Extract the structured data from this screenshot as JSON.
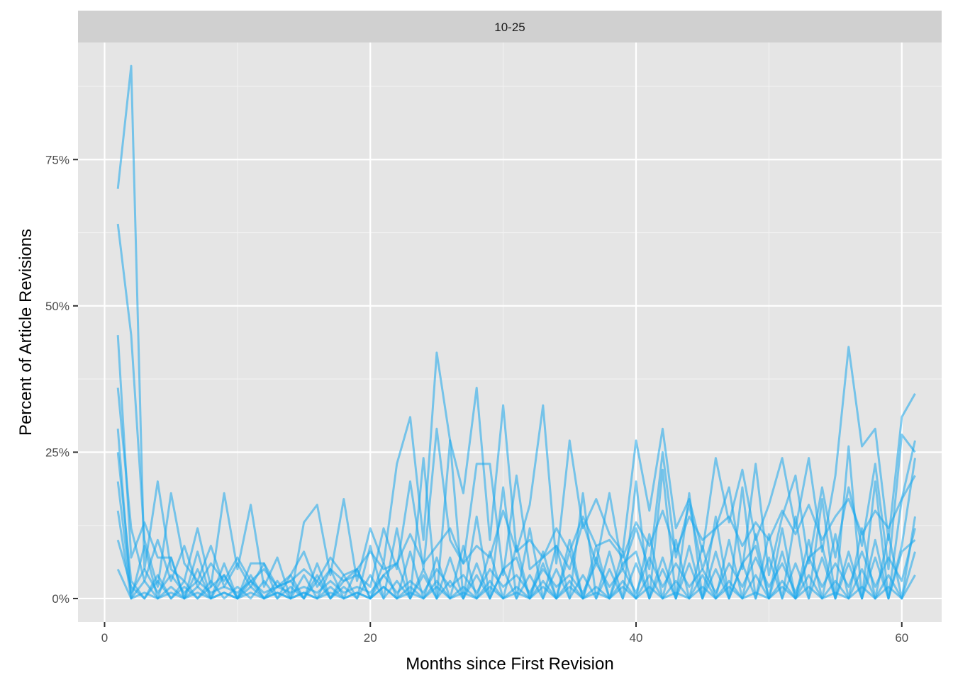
{
  "chart_data": {
    "type": "line",
    "facet_label": "10-25",
    "xlabel": "Months since First Revision",
    "ylabel": "Percent of Article Revisions",
    "xlim": [
      -2,
      63
    ],
    "ylim": [
      -0.04,
      0.95
    ],
    "x_ticks": [
      0,
      20,
      40,
      60
    ],
    "x_tick_labels": [
      "0",
      "20",
      "40",
      "60"
    ],
    "y_ticks": [
      0,
      0.25,
      0.5,
      0.75
    ],
    "y_tick_labels": [
      "0%",
      "25%",
      "50%",
      "75%"
    ],
    "grid": true,
    "legend": "none",
    "series_color": "#1AA7EC",
    "panel_background": "#E5E5E5",
    "strip_background": "#D0D0D0",
    "series": [
      {
        "x": [
          1,
          2,
          3,
          4,
          5,
          6,
          7,
          8,
          9,
          10,
          11,
          12,
          13,
          14,
          15,
          16,
          17,
          18,
          19,
          20,
          21,
          22,
          23,
          24,
          25,
          26,
          27,
          28,
          29,
          30,
          31,
          32,
          33,
          34,
          35,
          36,
          37,
          38,
          39,
          40,
          41,
          42,
          43,
          44,
          45,
          46,
          47,
          48,
          49,
          50,
          51,
          52,
          53,
          54,
          55,
          56,
          57,
          58,
          59,
          60,
          61
        ],
        "y": [
          0.7,
          0.91,
          0.05,
          0.2,
          0.05,
          0.03,
          0.12,
          0.02,
          0.18,
          0.05,
          0.16,
          0.02,
          0.07,
          0.0,
          0.13,
          0.16,
          0.04,
          0.17,
          0.03,
          0.12,
          0.06,
          0.23,
          0.31,
          0.1,
          0.42,
          0.27,
          0.18,
          0.36,
          0.1,
          0.33,
          0.08,
          0.16,
          0.33,
          0.06,
          0.27,
          0.12,
          0.17,
          0.11,
          0.08,
          0.27,
          0.15,
          0.29,
          0.12,
          0.17,
          0.08,
          0.24,
          0.13,
          0.22,
          0.1,
          0.16,
          0.24,
          0.12,
          0.24,
          0.08,
          0.21,
          0.43,
          0.26,
          0.29,
          0.1,
          0.31,
          0.35
        ]
      },
      {
        "x": [
          1,
          2,
          3,
          4,
          5,
          6,
          7,
          8,
          9,
          10,
          11,
          12,
          13,
          14,
          15,
          16,
          17,
          18,
          19,
          20,
          21,
          22,
          23,
          24,
          25,
          26,
          27,
          28,
          29,
          30,
          31,
          32,
          33,
          34,
          35,
          36,
          37,
          38,
          39,
          40,
          41,
          42,
          43,
          44,
          45,
          46,
          47,
          48,
          49,
          50,
          51,
          52,
          53,
          54,
          55,
          56,
          57,
          58,
          59,
          60,
          61
        ],
        "y": [
          0.64,
          0.45,
          0.1,
          0.02,
          0.18,
          0.06,
          0.03,
          0.09,
          0.02,
          0.06,
          0.02,
          0.06,
          0.02,
          0.04,
          0.08,
          0.02,
          0.05,
          0.03,
          0.04,
          0.02,
          0.12,
          0.05,
          0.2,
          0.05,
          0.29,
          0.1,
          0.06,
          0.23,
          0.23,
          0.04,
          0.21,
          0.05,
          0.07,
          0.09,
          0.05,
          0.13,
          0.06,
          0.18,
          0.05,
          0.12,
          0.05,
          0.25,
          0.07,
          0.16,
          0.05,
          0.12,
          0.19,
          0.05,
          0.23,
          0.04,
          0.14,
          0.21,
          0.06,
          0.19,
          0.07,
          0.19,
          0.09,
          0.23,
          0.05,
          0.28,
          0.25
        ]
      },
      {
        "x": [
          1,
          2,
          3,
          4,
          5,
          6,
          7,
          8,
          9,
          10,
          11,
          12,
          13,
          14,
          15,
          16,
          17,
          18,
          19,
          20,
          21,
          22,
          23,
          24,
          25,
          26,
          27,
          28,
          29,
          30,
          31,
          32,
          33,
          34,
          35,
          36,
          37,
          38,
          39,
          40,
          41,
          42,
          43,
          44,
          45,
          46,
          47,
          48,
          49,
          50,
          51,
          52,
          53,
          54,
          55,
          56,
          57,
          58,
          59,
          60,
          61
        ],
        "y": [
          0.45,
          0.07,
          0.13,
          0.07,
          0.07,
          0.0,
          0.08,
          0.0,
          0.06,
          0.0,
          0.06,
          0.06,
          0.0,
          0.04,
          0.0,
          0.06,
          0.0,
          0.04,
          0.0,
          0.09,
          0.0,
          0.12,
          0.0,
          0.24,
          0.0,
          0.27,
          0.0,
          0.14,
          0.0,
          0.19,
          0.0,
          0.12,
          0.0,
          0.09,
          0.0,
          0.18,
          0.0,
          0.08,
          0.0,
          0.2,
          0.0,
          0.22,
          0.0,
          0.18,
          0.0,
          0.14,
          0.0,
          0.19,
          0.0,
          0.11,
          0.0,
          0.14,
          0.0,
          0.17,
          0.0,
          0.26,
          0.0,
          0.2,
          0.0,
          0.17,
          0.27
        ]
      },
      {
        "x": [
          1,
          2,
          3,
          4,
          5,
          6,
          7,
          8,
          9,
          10,
          11,
          12,
          13,
          14,
          15,
          16,
          17,
          18,
          19,
          20,
          21,
          22,
          23,
          24,
          25,
          26,
          27,
          28,
          29,
          30,
          31,
          32,
          33,
          34,
          35,
          36,
          37,
          38,
          39,
          40,
          41,
          42,
          43,
          44,
          45,
          46,
          47,
          48,
          49,
          50,
          51,
          52,
          53,
          54,
          55,
          56,
          57,
          58,
          59,
          60,
          61
        ],
        "y": [
          0.36,
          0.12,
          0.03,
          0.1,
          0.03,
          0.09,
          0.02,
          0.06,
          0.03,
          0.07,
          0.03,
          0.05,
          0.02,
          0.03,
          0.05,
          0.03,
          0.07,
          0.04,
          0.05,
          0.08,
          0.05,
          0.06,
          0.11,
          0.06,
          0.09,
          0.12,
          0.06,
          0.09,
          0.07,
          0.15,
          0.08,
          0.1,
          0.07,
          0.12,
          0.08,
          0.14,
          0.09,
          0.1,
          0.07,
          0.13,
          0.09,
          0.15,
          0.08,
          0.14,
          0.1,
          0.12,
          0.14,
          0.09,
          0.13,
          0.1,
          0.15,
          0.11,
          0.16,
          0.1,
          0.14,
          0.17,
          0.11,
          0.15,
          0.12,
          0.17,
          0.21
        ]
      },
      {
        "x": [
          1,
          2,
          3,
          4,
          5,
          6,
          7,
          8,
          9,
          10,
          11,
          12,
          13,
          14,
          15,
          16,
          17,
          18,
          19,
          20,
          21,
          22,
          23,
          24,
          25,
          26,
          27,
          28,
          29,
          30,
          31,
          32,
          33,
          34,
          35,
          36,
          37,
          38,
          39,
          40,
          41,
          42,
          43,
          44,
          45,
          46,
          47,
          48,
          49,
          50,
          51,
          52,
          53,
          54,
          55,
          56,
          57,
          58,
          59,
          60,
          61
        ],
        "y": [
          0.29,
          0.0,
          0.09,
          0.0,
          0.07,
          0.0,
          0.05,
          0.0,
          0.04,
          0.0,
          0.04,
          0.0,
          0.03,
          0.0,
          0.04,
          0.0,
          0.05,
          0.0,
          0.05,
          0.0,
          0.06,
          0.0,
          0.08,
          0.0,
          0.07,
          0.0,
          0.09,
          0.0,
          0.08,
          0.0,
          0.09,
          0.0,
          0.08,
          0.0,
          0.1,
          0.0,
          0.09,
          0.0,
          0.08,
          0.0,
          0.11,
          0.0,
          0.1,
          0.0,
          0.09,
          0.0,
          0.1,
          0.0,
          0.11,
          0.0,
          0.12,
          0.0,
          0.1,
          0.0,
          0.11,
          0.0,
          0.12,
          0.0,
          0.11,
          0.0,
          0.14
        ]
      },
      {
        "x": [
          1,
          2,
          3,
          4,
          5,
          6,
          7,
          8,
          9,
          10,
          11,
          12,
          13,
          14,
          15,
          16,
          17,
          18,
          19,
          20,
          21,
          22,
          23,
          24,
          25,
          26,
          27,
          28,
          29,
          30,
          31,
          32,
          33,
          34,
          35,
          36,
          37,
          38,
          39,
          40,
          41,
          42,
          43,
          44,
          45,
          46,
          47,
          48,
          49,
          50,
          51,
          52,
          53,
          54,
          55,
          56,
          57,
          58,
          59,
          60,
          61
        ],
        "y": [
          0.25,
          0.03,
          0.0,
          0.04,
          0.0,
          0.03,
          0.0,
          0.02,
          0.04,
          0.0,
          0.03,
          0.0,
          0.02,
          0.03,
          0.0,
          0.04,
          0.0,
          0.03,
          0.05,
          0.0,
          0.04,
          0.06,
          0.0,
          0.05,
          0.0,
          0.07,
          0.0,
          0.06,
          0.0,
          0.05,
          0.07,
          0.0,
          0.06,
          0.0,
          0.08,
          0.0,
          0.07,
          0.0,
          0.06,
          0.08,
          0.0,
          0.07,
          0.0,
          0.09,
          0.0,
          0.08,
          0.0,
          0.06,
          0.09,
          0.0,
          0.08,
          0.0,
          0.07,
          0.09,
          0.0,
          0.08,
          0.0,
          0.1,
          0.0,
          0.09,
          0.24
        ]
      },
      {
        "x": [
          1,
          2,
          3,
          4,
          5,
          6,
          7,
          8,
          9,
          10,
          11,
          12,
          13,
          14,
          15,
          16,
          17,
          18,
          19,
          20,
          21,
          22,
          23,
          24,
          25,
          26,
          27,
          28,
          29,
          30,
          31,
          32,
          33,
          34,
          35,
          36,
          37,
          38,
          39,
          40,
          41,
          42,
          43,
          44,
          45,
          46,
          47,
          48,
          49,
          50,
          51,
          52,
          53,
          54,
          55,
          56,
          57,
          58,
          59,
          60,
          61
        ],
        "y": [
          0.2,
          0.01,
          0.05,
          0.01,
          0.04,
          0.01,
          0.03,
          0.01,
          0.02,
          0.01,
          0.03,
          0.01,
          0.02,
          0.01,
          0.02,
          0.01,
          0.03,
          0.01,
          0.02,
          0.01,
          0.04,
          0.01,
          0.03,
          0.01,
          0.05,
          0.02,
          0.04,
          0.01,
          0.05,
          0.02,
          0.04,
          0.01,
          0.05,
          0.02,
          0.04,
          0.01,
          0.06,
          0.02,
          0.05,
          0.01,
          0.07,
          0.02,
          0.06,
          0.02,
          0.05,
          0.01,
          0.06,
          0.02,
          0.07,
          0.02,
          0.06,
          0.01,
          0.07,
          0.02,
          0.06,
          0.02,
          0.08,
          0.02,
          0.07,
          0.03,
          0.12
        ]
      },
      {
        "x": [
          1,
          2,
          3,
          4,
          5,
          6,
          7,
          8,
          9,
          10,
          11,
          12,
          13,
          14,
          15,
          16,
          17,
          18,
          19,
          20,
          21,
          22,
          23,
          24,
          25,
          26,
          27,
          28,
          29,
          30,
          31,
          32,
          33,
          34,
          35,
          36,
          37,
          38,
          39,
          40,
          41,
          42,
          43,
          44,
          45,
          46,
          47,
          48,
          49,
          50,
          51,
          52,
          53,
          54,
          55,
          56,
          57,
          58,
          59,
          60,
          61
        ],
        "y": [
          0.15,
          0.0,
          0.03,
          0.0,
          0.02,
          0.0,
          0.02,
          0.0,
          0.01,
          0.0,
          0.02,
          0.0,
          0.01,
          0.0,
          0.01,
          0.0,
          0.02,
          0.0,
          0.01,
          0.0,
          0.02,
          0.0,
          0.02,
          0.0,
          0.03,
          0.0,
          0.02,
          0.0,
          0.03,
          0.0,
          0.02,
          0.0,
          0.03,
          0.0,
          0.03,
          0.0,
          0.02,
          0.0,
          0.03,
          0.0,
          0.04,
          0.0,
          0.03,
          0.0,
          0.04,
          0.0,
          0.03,
          0.0,
          0.04,
          0.0,
          0.03,
          0.0,
          0.04,
          0.0,
          0.03,
          0.0,
          0.05,
          0.0,
          0.04,
          0.0,
          0.08
        ]
      },
      {
        "x": [
          1,
          2,
          3,
          4,
          5,
          6,
          7,
          8,
          9,
          10,
          11,
          12,
          13,
          14,
          15,
          16,
          17,
          18,
          19,
          20,
          21,
          22,
          23,
          24,
          25,
          26,
          27,
          28,
          29,
          30,
          31,
          32,
          33,
          34,
          35,
          36,
          37,
          38,
          39,
          40,
          41,
          42,
          43,
          44,
          45,
          46,
          47,
          48,
          49,
          50,
          51,
          52,
          53,
          54,
          55,
          56,
          57,
          58,
          59,
          60,
          61
        ],
        "y": [
          0.1,
          0.02,
          0.0,
          0.03,
          0.0,
          0.02,
          0.0,
          0.03,
          0.0,
          0.02,
          0.0,
          0.03,
          0.0,
          0.02,
          0.0,
          0.03,
          0.0,
          0.02,
          0.0,
          0.04,
          0.0,
          0.03,
          0.0,
          0.04,
          0.0,
          0.03,
          0.0,
          0.04,
          0.0,
          0.05,
          0.0,
          0.04,
          0.0,
          0.05,
          0.0,
          0.04,
          0.0,
          0.05,
          0.0,
          0.06,
          0.0,
          0.05,
          0.0,
          0.06,
          0.0,
          0.05,
          0.0,
          0.06,
          0.0,
          0.07,
          0.0,
          0.06,
          0.0,
          0.07,
          0.0,
          0.06,
          0.0,
          0.07,
          0.0,
          0.08,
          0.1
        ]
      },
      {
        "x": [
          1,
          2,
          3,
          4,
          5,
          6,
          7,
          8,
          9,
          10,
          11,
          12,
          13,
          14,
          15,
          16,
          17,
          18,
          19,
          20,
          21,
          22,
          23,
          24,
          25,
          26,
          27,
          28,
          29,
          30,
          31,
          32,
          33,
          34,
          35,
          36,
          37,
          38,
          39,
          40,
          41,
          42,
          43,
          44,
          45,
          46,
          47,
          48,
          49,
          50,
          51,
          52,
          53,
          54,
          55,
          56,
          57,
          58,
          59,
          60,
          61
        ],
        "y": [
          0.05,
          0.0,
          0.01,
          0.0,
          0.01,
          0.0,
          0.01,
          0.0,
          0.01,
          0.0,
          0.01,
          0.0,
          0.01,
          0.0,
          0.01,
          0.0,
          0.01,
          0.0,
          0.01,
          0.0,
          0.02,
          0.0,
          0.01,
          0.0,
          0.02,
          0.0,
          0.01,
          0.0,
          0.02,
          0.0,
          0.01,
          0.0,
          0.02,
          0.0,
          0.02,
          0.0,
          0.01,
          0.0,
          0.02,
          0.0,
          0.02,
          0.0,
          0.01,
          0.0,
          0.02,
          0.0,
          0.02,
          0.0,
          0.01,
          0.0,
          0.02,
          0.0,
          0.02,
          0.0,
          0.01,
          0.0,
          0.02,
          0.0,
          0.02,
          0.0,
          0.04
        ]
      }
    ]
  }
}
